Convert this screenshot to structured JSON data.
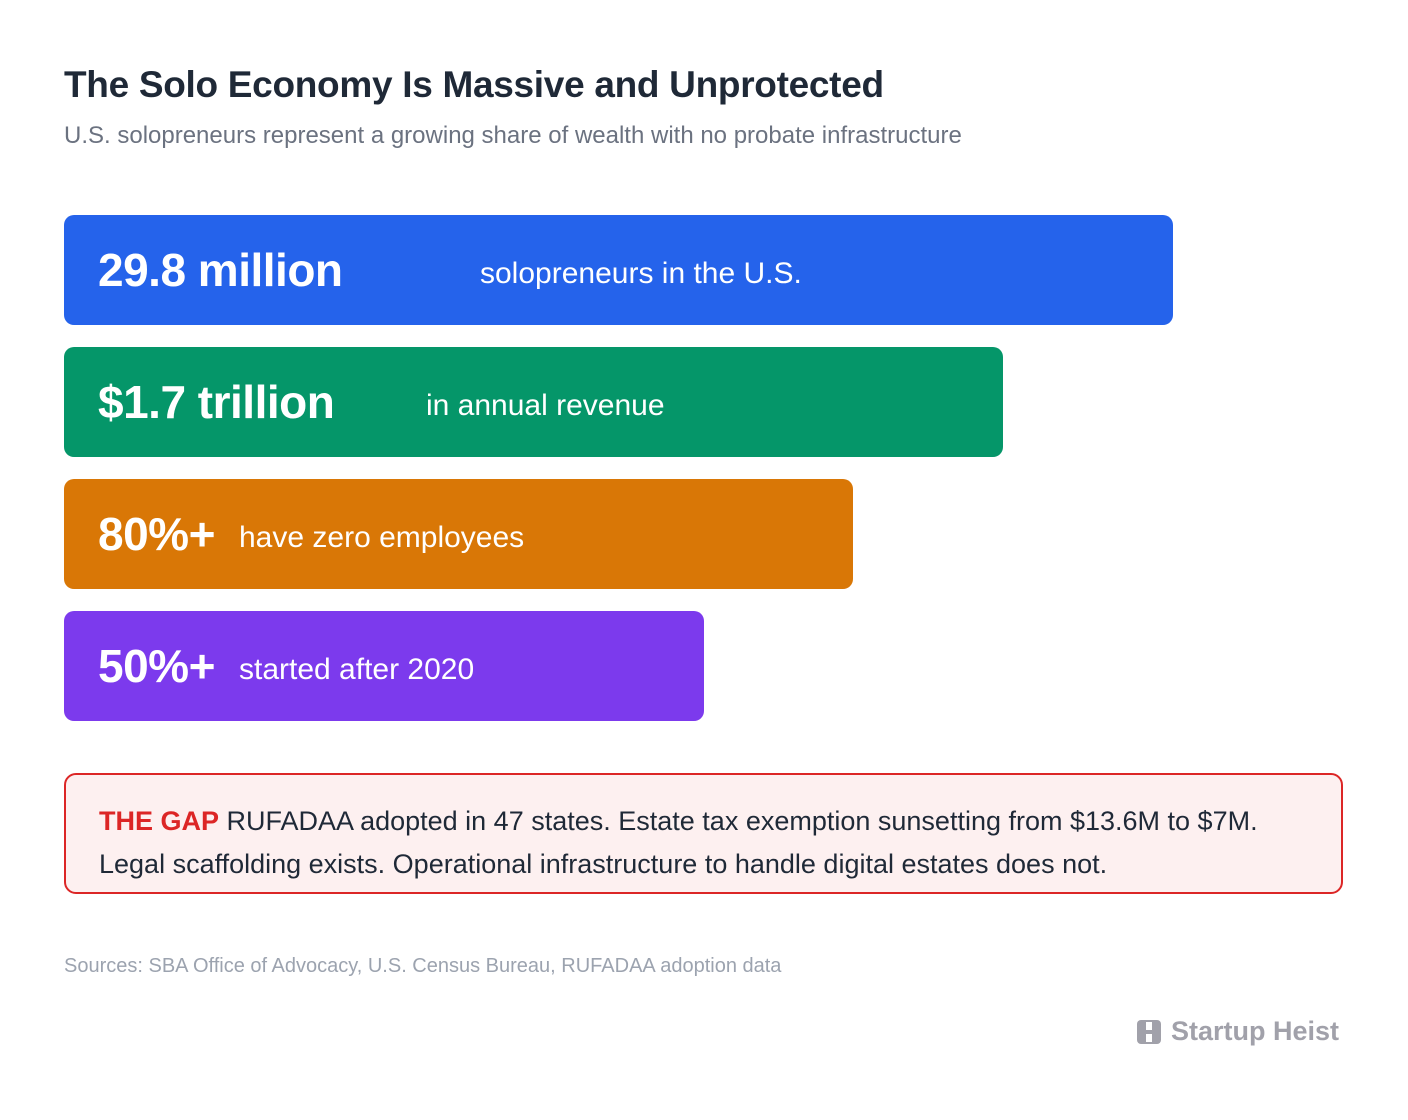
{
  "header": {
    "title": "The Solo Economy Is Massive and Unprotected",
    "subtitle": "U.S. solopreneurs represent a growing share of wealth with no probate infrastructure"
  },
  "stats": [
    {
      "value": "29.8 million",
      "description": "solopreneurs in the U.S.",
      "color": "#2563eb"
    },
    {
      "value": "$1.7 trillion",
      "description": "in annual revenue",
      "color": "#059669"
    },
    {
      "value": "80%+",
      "description": "have zero employees",
      "color": "#d97706"
    },
    {
      "value": "50%+",
      "description": "started after 2020",
      "color": "#7c3aed"
    }
  ],
  "gap": {
    "label": "THE GAP",
    "line1": "RUFADAA adopted in 47 states. Estate tax exemption sunsetting from $13.6M to $7M.",
    "line2": "Legal scaffolding exists. Operational infrastructure to handle digital estates does not.",
    "accent_color": "#dc2626"
  },
  "footer": {
    "sources": "Sources: SBA Office of Advocacy, U.S. Census Bureau, RUFADAA adoption data",
    "brand_name": "Startup Heist",
    "brand_icon": "building-icon"
  }
}
